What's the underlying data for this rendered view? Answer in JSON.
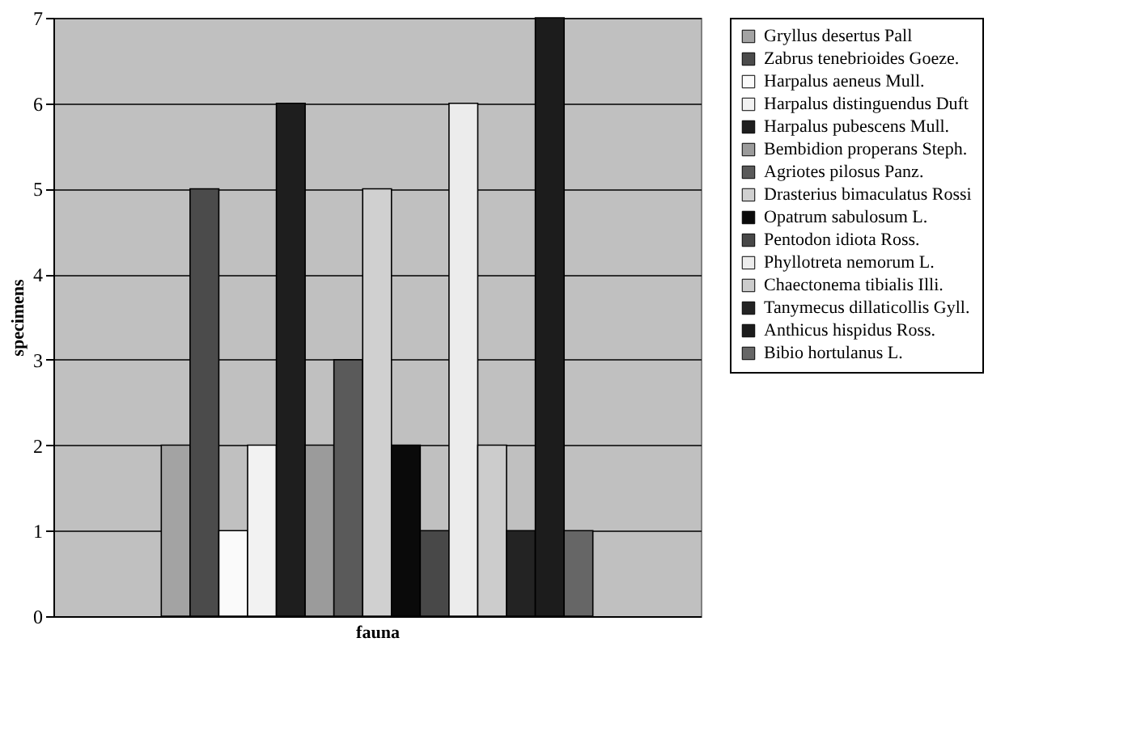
{
  "chart_data": {
    "type": "bar",
    "xlabel": "fauna",
    "ylabel": "specimens",
    "categories": [
      null
    ],
    "series": [
      {
        "name": "Gryllus desertus Pall",
        "color": "#a3a3a3",
        "values": [
          2
        ]
      },
      {
        "name": "Zabrus tenebrioides Goeze.",
        "color": "#4b4b4b",
        "values": [
          5
        ]
      },
      {
        "name": "Harpalus aeneus Mull.",
        "color": "#fafafa",
        "values": [
          1
        ]
      },
      {
        "name": "Harpalus distinguendus Duft",
        "color": "#f2f2f2",
        "values": [
          2
        ]
      },
      {
        "name": "Harpalus pubescens Mull.",
        "color": "#1e1e1e",
        "values": [
          6
        ]
      },
      {
        "name": "Bembidion properans Steph.",
        "color": "#9b9b9b",
        "values": [
          2
        ]
      },
      {
        "name": "Agriotes pilosus Panz.",
        "color": "#5a5a5a",
        "values": [
          3
        ]
      },
      {
        "name": "Drasterius bimaculatus Rossi",
        "color": "#d0d0d0",
        "values": [
          5
        ]
      },
      {
        "name": "Opatrum sabulosum L.",
        "color": "#0a0a0a",
        "values": [
          2
        ]
      },
      {
        "name": "Pentodon idiota Ross.",
        "color": "#484848",
        "values": [
          1
        ]
      },
      {
        "name": "Phyllotreta nemorum L.",
        "color": "#ececec",
        "values": [
          6
        ]
      },
      {
        "name": "Chaectonema tibialis Illi.",
        "color": "#cccccc",
        "values": [
          2
        ]
      },
      {
        "name": "Tanymecus dillaticollis Gyll.",
        "color": "#232323",
        "values": [
          1
        ]
      },
      {
        "name": "Anthicus hispidus Ross.",
        "color": "#1c1c1c",
        "values": [
          7
        ]
      },
      {
        "name": "Bibio hortulanus L.",
        "color": "#666666",
        "values": [
          1
        ]
      }
    ],
    "ylim": [
      0,
      7
    ],
    "yticks": [
      0,
      1,
      2,
      3,
      4,
      5,
      6,
      7
    ],
    "grid": "y",
    "legend": "right",
    "tick_labels": "y"
  }
}
